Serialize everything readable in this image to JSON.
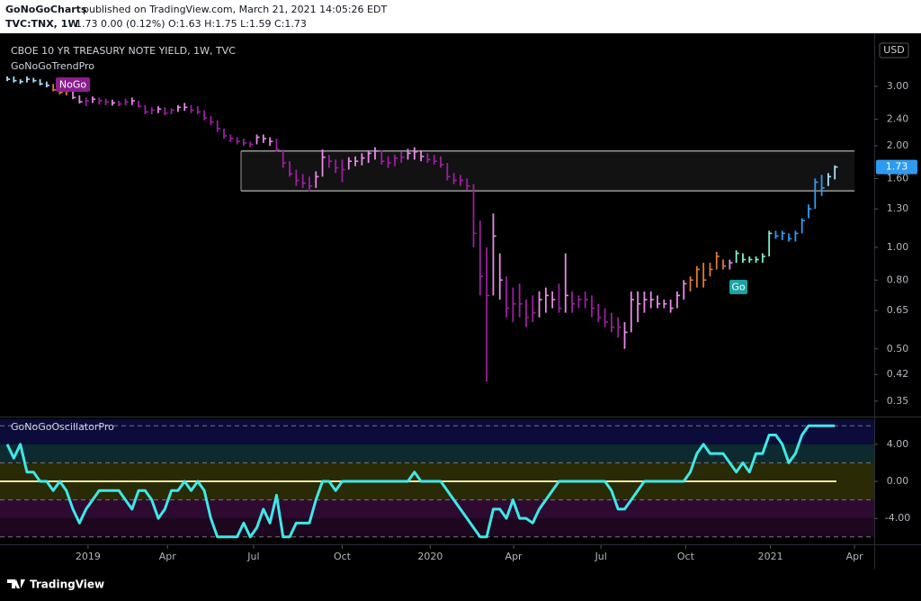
{
  "header": {
    "author": "GoNoGoCharts",
    "published": "published on TradingView.com, March 21, 2021 14:05:26 EDT",
    "symbol": "TVC:TNX, 1W",
    "quote": "1.73 0.00 (0.12%) O:1.63 H:1.75 L:1.59 C:1.73"
  },
  "footer": {
    "brand": "TradingView"
  },
  "chart_data": [
    {
      "type": "ohlc",
      "title": "CBOE 10 YR TREASURY NOTE YIELD, 1W, TVC",
      "subtitle": "GoNoGoTrendPro",
      "currency": "USD",
      "log_scale": true,
      "ylim": [
        0.317,
        4.18
      ],
      "yticks": [
        {
          "value": 3,
          "label": "3.00"
        },
        {
          "value": 2.4,
          "label": "2.40"
        },
        {
          "value": 2,
          "label": "2.00"
        },
        {
          "value": 1.6,
          "label": "1.60"
        },
        {
          "value": 1.3,
          "label": "1.30"
        },
        {
          "value": 1,
          "label": "1.00"
        },
        {
          "value": 0.8,
          "label": "0.80"
        },
        {
          "value": 0.65,
          "label": "0.65"
        },
        {
          "value": 0.5,
          "label": "0.50"
        },
        {
          "value": 0.42,
          "label": "0.42"
        },
        {
          "value": 0.35,
          "label": "0.35"
        }
      ],
      "high": [
        3.21,
        3.21,
        3.15,
        3.21,
        3.18,
        3.15,
        3.1,
        3.05,
        3.0,
        2.95,
        2.9,
        2.82,
        2.78,
        2.8,
        2.78,
        2.76,
        2.74,
        2.72,
        2.76,
        2.78,
        2.72,
        2.64,
        2.6,
        2.62,
        2.6,
        2.58,
        2.64,
        2.68,
        2.64,
        2.62,
        2.55,
        2.45,
        2.38,
        2.25,
        2.16,
        2.12,
        2.1,
        2.06,
        2.16,
        2.16,
        2.12,
        2.1,
        1.95,
        1.8,
        1.7,
        1.65,
        1.62,
        1.68,
        1.95,
        1.88,
        1.82,
        1.82,
        1.85,
        1.86,
        1.9,
        1.94,
        1.98,
        1.94,
        1.86,
        1.88,
        1.92,
        1.96,
        1.98,
        1.94,
        1.9,
        1.88,
        1.86,
        1.78,
        1.66,
        1.64,
        1.6,
        1.54,
        1.2,
        1.0,
        1.26,
        0.96,
        0.82,
        0.76,
        0.78,
        0.7,
        0.72,
        0.74,
        0.76,
        0.74,
        0.78,
        0.96,
        0.74,
        0.72,
        0.74,
        0.72,
        0.68,
        0.66,
        0.64,
        0.62,
        0.6,
        0.74,
        0.74,
        0.74,
        0.74,
        0.72,
        0.7,
        0.7,
        0.74,
        0.8,
        0.82,
        0.88,
        0.9,
        0.9,
        0.97,
        0.92,
        0.92,
        0.98,
        0.96,
        0.94,
        0.94,
        0.96,
        1.12,
        1.12,
        1.12,
        1.1,
        1.12,
        1.22,
        1.34,
        1.6,
        1.64,
        1.66,
        1.75
      ],
      "low": [
        3.11,
        3.08,
        3.05,
        3.08,
        3.08,
        3.02,
        2.98,
        2.9,
        2.84,
        2.82,
        2.75,
        2.67,
        2.62,
        2.68,
        2.65,
        2.64,
        2.63,
        2.62,
        2.63,
        2.64,
        2.6,
        2.48,
        2.48,
        2.5,
        2.46,
        2.48,
        2.52,
        2.54,
        2.5,
        2.48,
        2.38,
        2.3,
        2.2,
        2.1,
        2.05,
        2.02,
        2.0,
        1.98,
        2.02,
        2.04,
        2.0,
        1.92,
        1.72,
        1.62,
        1.52,
        1.5,
        1.46,
        1.5,
        1.62,
        1.72,
        1.66,
        1.56,
        1.7,
        1.74,
        1.75,
        1.78,
        1.82,
        1.76,
        1.72,
        1.74,
        1.78,
        1.82,
        1.82,
        1.8,
        1.78,
        1.76,
        1.72,
        1.58,
        1.54,
        1.52,
        1.48,
        1.0,
        0.72,
        0.4,
        0.72,
        0.7,
        0.62,
        0.6,
        0.62,
        0.58,
        0.6,
        0.62,
        0.64,
        0.66,
        0.64,
        0.64,
        0.64,
        0.66,
        0.66,
        0.62,
        0.6,
        0.58,
        0.56,
        0.54,
        0.5,
        0.56,
        0.6,
        0.64,
        0.66,
        0.66,
        0.66,
        0.64,
        0.66,
        0.7,
        0.74,
        0.76,
        0.76,
        0.82,
        0.86,
        0.86,
        0.86,
        0.9,
        0.9,
        0.9,
        0.9,
        0.9,
        0.94,
        1.06,
        1.05,
        1.04,
        1.04,
        1.1,
        1.22,
        1.3,
        1.42,
        1.52,
        1.59
      ],
      "close": [
        3.15,
        3.12,
        3.1,
        3.15,
        3.12,
        3.05,
        3.02,
        2.93,
        2.88,
        2.9,
        2.78,
        2.7,
        2.72,
        2.75,
        2.72,
        2.7,
        2.68,
        2.66,
        2.7,
        2.72,
        2.62,
        2.52,
        2.55,
        2.57,
        2.5,
        2.55,
        2.6,
        2.6,
        2.55,
        2.52,
        2.42,
        2.35,
        2.25,
        2.14,
        2.1,
        2.06,
        2.04,
        2.02,
        2.12,
        2.1,
        2.06,
        1.95,
        1.78,
        1.65,
        1.58,
        1.55,
        1.52,
        1.62,
        1.85,
        1.8,
        1.72,
        1.7,
        1.8,
        1.8,
        1.84,
        1.9,
        1.93,
        1.8,
        1.78,
        1.84,
        1.85,
        1.9,
        1.92,
        1.86,
        1.82,
        1.8,
        1.76,
        1.62,
        1.58,
        1.58,
        1.52,
        1.1,
        0.82,
        0.72,
        1.08,
        0.8,
        0.66,
        0.68,
        0.68,
        0.62,
        0.64,
        0.7,
        0.72,
        0.7,
        0.66,
        0.72,
        0.68,
        0.7,
        0.7,
        0.66,
        0.62,
        0.6,
        0.58,
        0.58,
        0.56,
        0.7,
        0.68,
        0.7,
        0.7,
        0.68,
        0.68,
        0.66,
        0.72,
        0.78,
        0.8,
        0.86,
        0.8,
        0.86,
        0.94,
        0.88,
        0.9,
        0.96,
        0.92,
        0.92,
        0.92,
        0.94,
        1.1,
        1.08,
        1.1,
        1.06,
        1.1,
        1.2,
        1.3,
        1.56,
        1.5,
        1.62,
        1.73
      ],
      "bar_colors": [
        "#a8e0f8",
        "#a8e0f8",
        "#a8e0f8",
        "#a8e0f8",
        "#a8e0f8",
        "#a8e0f8",
        "#a8e0f8",
        "#e07a32",
        "#e07a32",
        "#e07a32",
        "#e88ae6",
        "#e88ae6",
        "#9c1fa0",
        "#e88ae6",
        "#9c1fa0",
        "#9c1fa0",
        "#e88ae6",
        "#9c1fa0",
        "#9c1fa0",
        "#e88ae6",
        "#9c1fa0",
        "#9c1fa0",
        "#9c1fa0",
        "#e88ae6",
        "#9c1fa0",
        "#9c1fa0",
        "#e88ae6",
        "#e88ae6",
        "#9c1fa0",
        "#9c1fa0",
        "#9c1fa0",
        "#9c1fa0",
        "#9c1fa0",
        "#9c1fa0",
        "#9c1fa0",
        "#9c1fa0",
        "#9c1fa0",
        "#9c1fa0",
        "#e88ae6",
        "#e88ae6",
        "#e88ae6",
        "#9c1fa0",
        "#9c1fa0",
        "#9c1fa0",
        "#9c1fa0",
        "#9c1fa0",
        "#9c1fa0",
        "#e88ae6",
        "#e88ae6",
        "#9c1fa0",
        "#9c1fa0",
        "#9c1fa0",
        "#e88ae6",
        "#e88ae6",
        "#e88ae6",
        "#e88ae6",
        "#e88ae6",
        "#9c1fa0",
        "#9c1fa0",
        "#9c1fa0",
        "#9c1fa0",
        "#e88ae6",
        "#e88ae6",
        "#e88ae6",
        "#9c1fa0",
        "#9c1fa0",
        "#9c1fa0",
        "#9c1fa0",
        "#9c1fa0",
        "#9c1fa0",
        "#9c1fa0",
        "#9c1fa0",
        "#9c1fa0",
        "#9c1fa0",
        "#e88ae6",
        "#e88ae6",
        "#9c1fa0",
        "#9c1fa0",
        "#9c1fa0",
        "#9c1fa0",
        "#9c1fa0",
        "#e88ae6",
        "#e88ae6",
        "#e88ae6",
        "#9c1fa0",
        "#e88ae6",
        "#9c1fa0",
        "#9c1fa0",
        "#9c1fa0",
        "#9c1fa0",
        "#9c1fa0",
        "#9c1fa0",
        "#9c1fa0",
        "#9c1fa0",
        "#e88ae6",
        "#e88ae6",
        "#e88ae6",
        "#e88ae6",
        "#e88ae6",
        "#e88ae6",
        "#e88ae6",
        "#e88ae6",
        "#e88ae6",
        "#e88ae6",
        "#e07a32",
        "#e07a32",
        "#e07a32",
        "#e07a32",
        "#e07a32",
        "#e07a32",
        "#e88ae6",
        "#7ff0c8",
        "#7ff0c8",
        "#7ff0c8",
        "#7ff0c8",
        "#7ff0c8",
        "#7ff0c8",
        "#2f9bf0",
        "#2f9bf0",
        "#2f9bf0",
        "#2f9bf0",
        "#2f9bf0",
        "#2f9bf0",
        "#2f9bf0",
        "#2f9bf0",
        "#a8e0f8",
        "#a8e0f8"
      ],
      "range_box": [
        1.47,
        1.93
      ],
      "labels": [
        "NoGo",
        "Go"
      ],
      "label_colors": [
        "#8b1f8e",
        "#1aa3a3"
      ],
      "last_price_color": "#2f9bf0"
    },
    {
      "type": "line",
      "title": "GoNoGoOscillatorPro",
      "color": "#3ee8e8",
      "ylim": [
        -6.8,
        6.7
      ],
      "yticks": [
        {
          "value": 4,
          "label": "4.00"
        },
        {
          "value": 0,
          "label": "0.00"
        },
        {
          "value": -4,
          "label": "-4.00"
        }
      ],
      "dashed_levels": [
        6,
        2,
        -2,
        -6
      ],
      "solid_level": 0,
      "solid_level_color": "#f0eaa0",
      "bands": [
        {
          "from": 4,
          "to": 6.7,
          "color": "#0c0c3a"
        },
        {
          "from": 2,
          "to": 4,
          "color": "#0c2a30"
        },
        {
          "from": -2,
          "to": 2,
          "color": "#2a2a06"
        },
        {
          "from": -4,
          "to": -2,
          "color": "#2e0a30"
        },
        {
          "from": -6,
          "to": -4,
          "color": "#1e061f"
        }
      ],
      "values": [
        4,
        2.5,
        4,
        1,
        1,
        0,
        0,
        -1,
        0,
        -1,
        -3,
        -4.5,
        -3,
        -2,
        -1,
        -1,
        -1,
        -1,
        -2,
        -3,
        -1,
        -1,
        -2,
        -4,
        -3,
        -1,
        -1,
        0,
        -1,
        0,
        -1,
        -4,
        -6,
        -6,
        -6,
        -6,
        -4.5,
        -6,
        -5,
        -3,
        -4.5,
        -1.5,
        -6,
        -6,
        -4.5,
        -4.5,
        -4.5,
        -2,
        0,
        0,
        -1,
        0,
        0,
        0,
        0,
        0,
        0,
        0,
        0,
        0,
        0,
        0,
        1,
        0,
        0,
        0,
        0,
        -1,
        -2,
        -3,
        -4,
        -5,
        -6,
        -6,
        -3,
        -3,
        -4,
        -2,
        -4,
        -4,
        -4.5,
        -3,
        -2,
        -1,
        0,
        0,
        0,
        0,
        0,
        0,
        0,
        0,
        -1,
        -3,
        -3,
        -2,
        -1,
        0,
        0,
        0,
        0,
        0,
        0,
        0,
        1,
        3,
        4,
        3,
        3,
        3,
        2,
        1,
        2,
        1,
        3,
        3,
        5,
        5,
        4,
        2,
        3,
        5,
        6,
        6,
        6,
        6,
        6
      ],
      "xlim": [
        -1.1,
        132
      ],
      "xticks": [
        {
          "value": 12.3,
          "label": "2019"
        },
        {
          "value": 24.4,
          "label": "Apr"
        },
        {
          "value": 37.5,
          "label": "Jul"
        },
        {
          "value": 51,
          "label": "Oct"
        },
        {
          "value": 64.4,
          "label": "2020"
        },
        {
          "value": 77.1,
          "label": "Apr"
        },
        {
          "value": 90.4,
          "label": "Jul"
        },
        {
          "value": 103.3,
          "label": "Oct"
        },
        {
          "value": 116.2,
          "label": "2021"
        },
        {
          "value": 129,
          "label": "Apr"
        }
      ]
    }
  ]
}
